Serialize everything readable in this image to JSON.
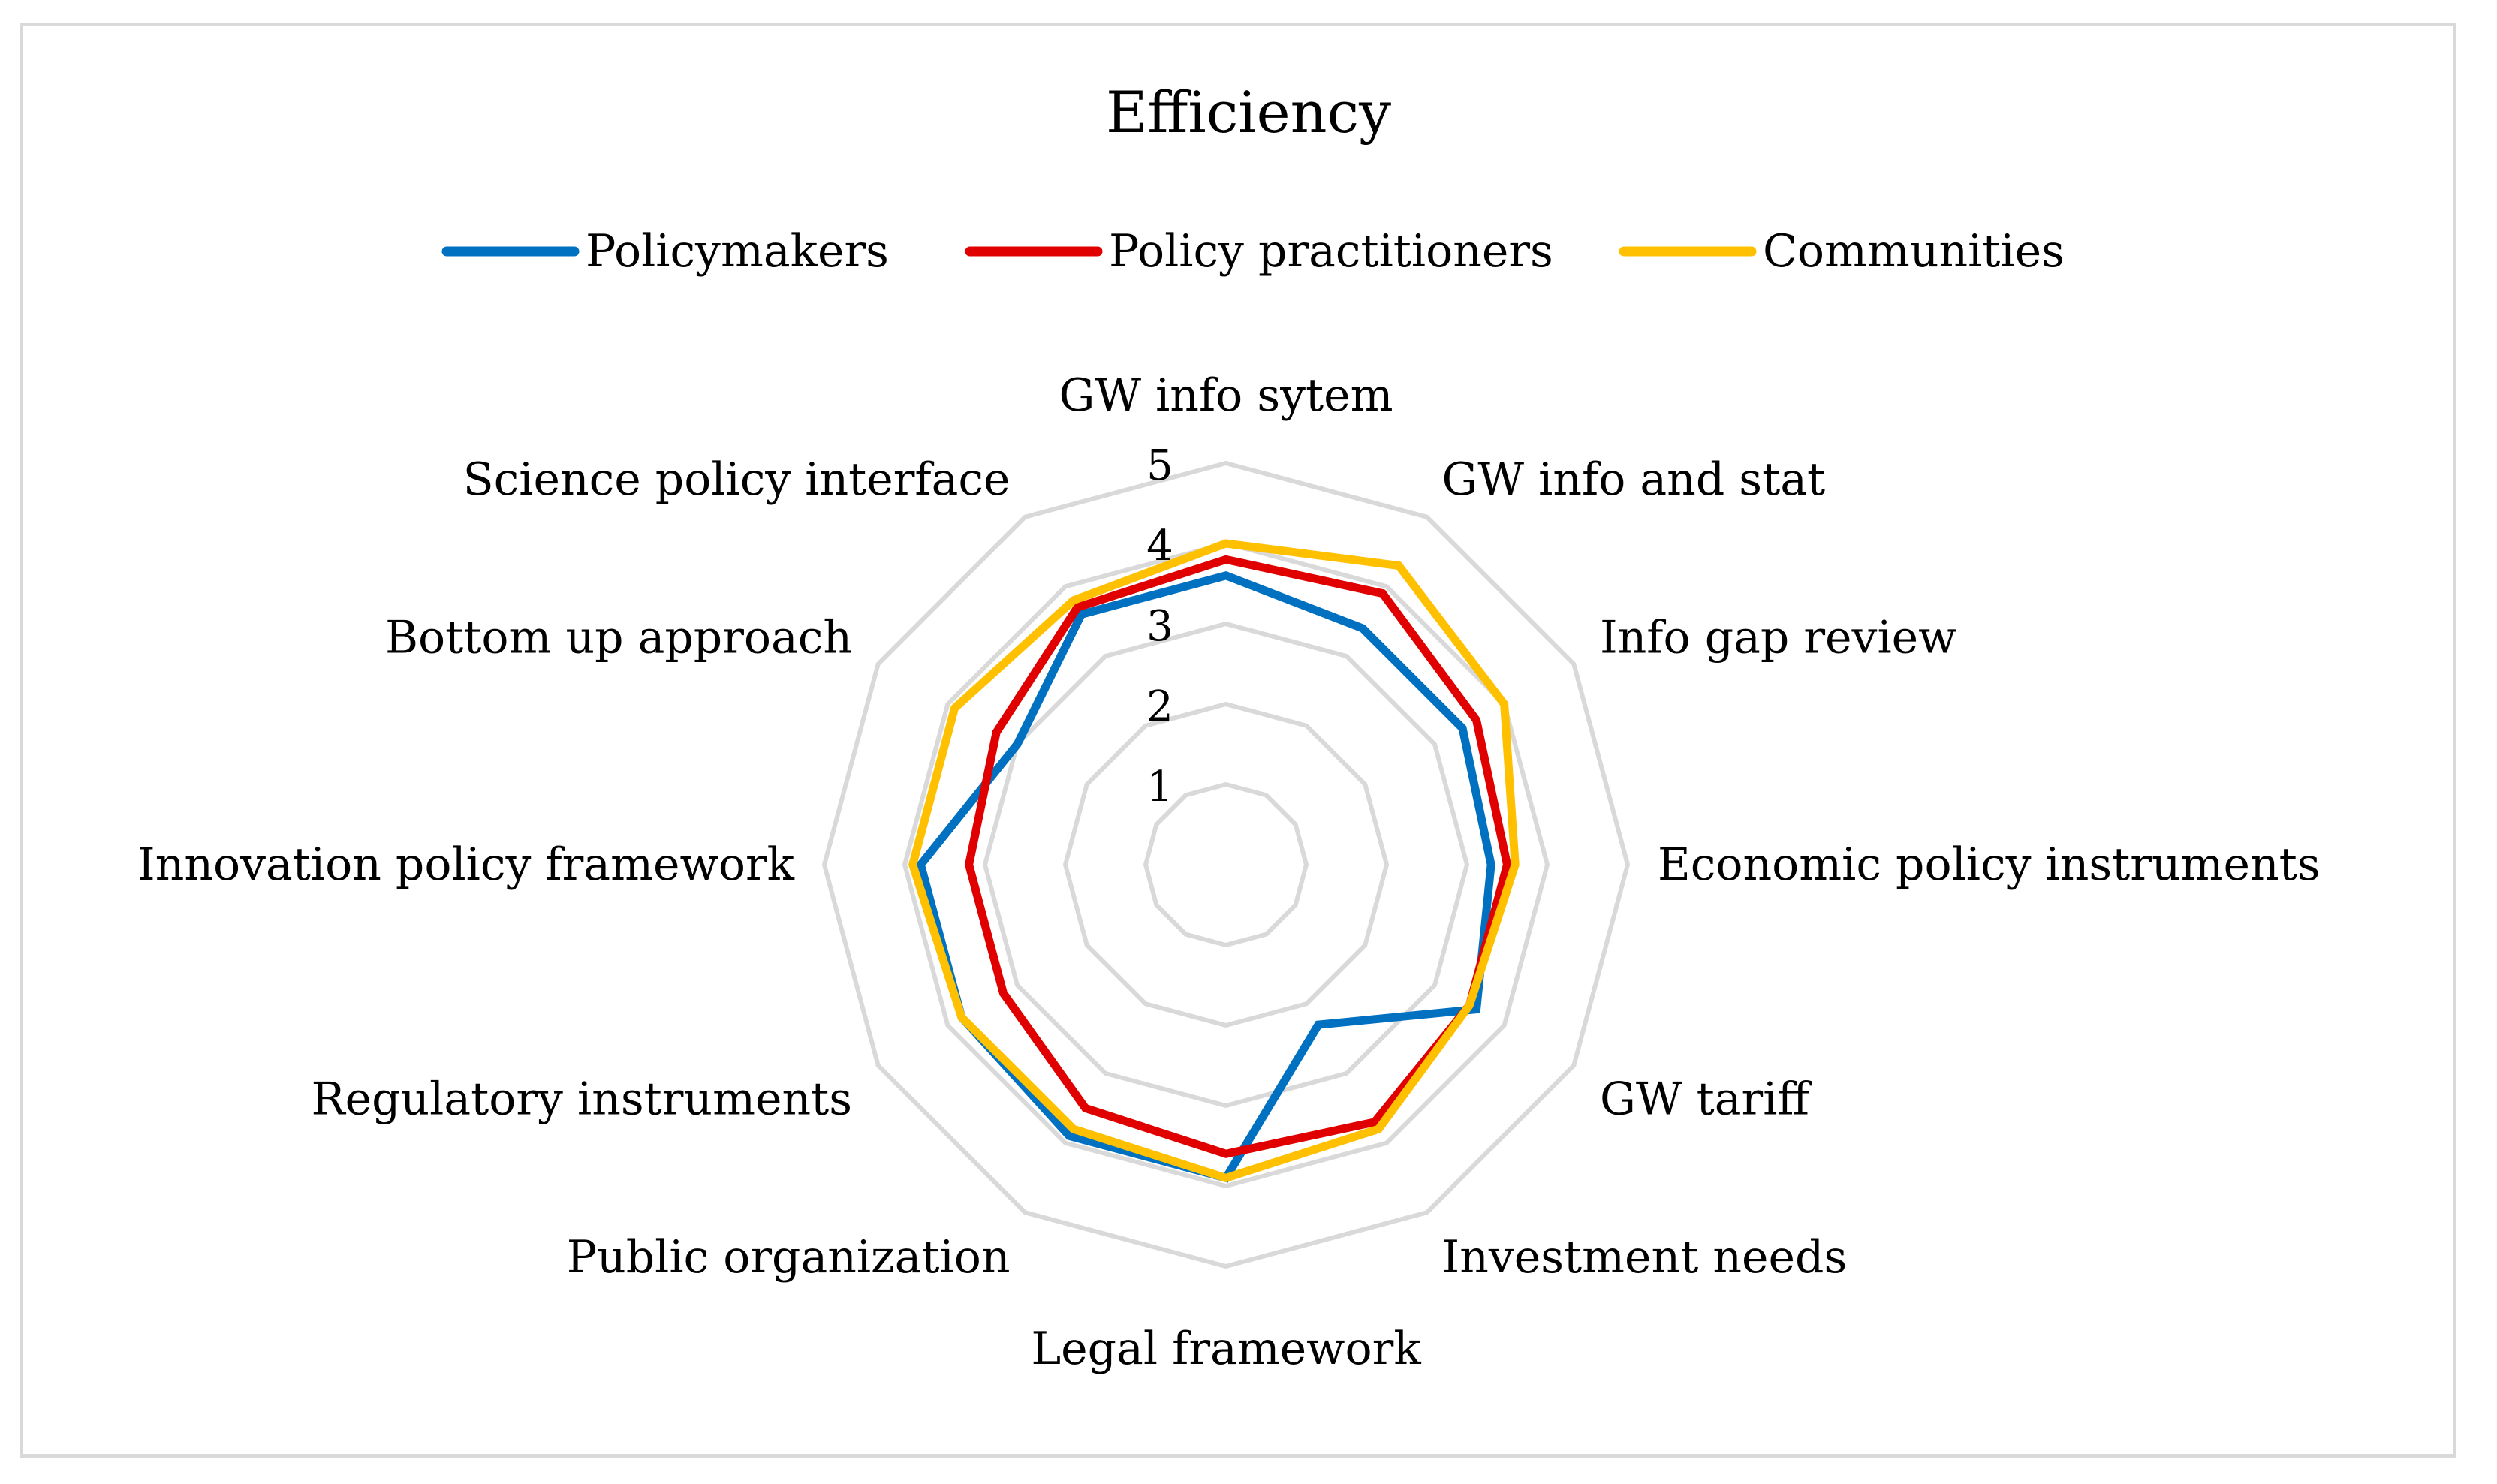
{
  "chart_data": {
    "type": "radar",
    "title": "Efficiency",
    "categories": [
      "GW info sytem",
      "GW info and stat",
      "Info gap review",
      "Economic policy instruments",
      "GW tariff",
      "Investment needs",
      "Legal framework",
      "Public organization",
      "Regulatory instruments",
      "Innovation policy framework",
      "Bottom up approach",
      "Science policy interface"
    ],
    "rlim": [
      0,
      5
    ],
    "ticks": [
      "1",
      "2",
      "3",
      "4",
      "5"
    ],
    "grid": true,
    "legend_position": "top",
    "series": [
      {
        "name": "Policymakers",
        "color": "#0070c0",
        "values": [
          3.6,
          3.4,
          3.4,
          3.3,
          3.6,
          2.3,
          3.9,
          3.9,
          3.8,
          3.8,
          3.0,
          3.6
        ]
      },
      {
        "name": "Policy practitioners",
        "color": "#e00000",
        "values": [
          3.8,
          3.9,
          3.6,
          3.5,
          3.5,
          3.7,
          3.6,
          3.5,
          3.2,
          3.2,
          3.3,
          3.7
        ]
      },
      {
        "name": "Communities",
        "color": "#ffc000",
        "values": [
          4.0,
          4.3,
          4.0,
          3.6,
          3.5,
          3.8,
          3.9,
          3.8,
          3.8,
          3.9,
          3.9,
          3.8
        ]
      }
    ]
  }
}
